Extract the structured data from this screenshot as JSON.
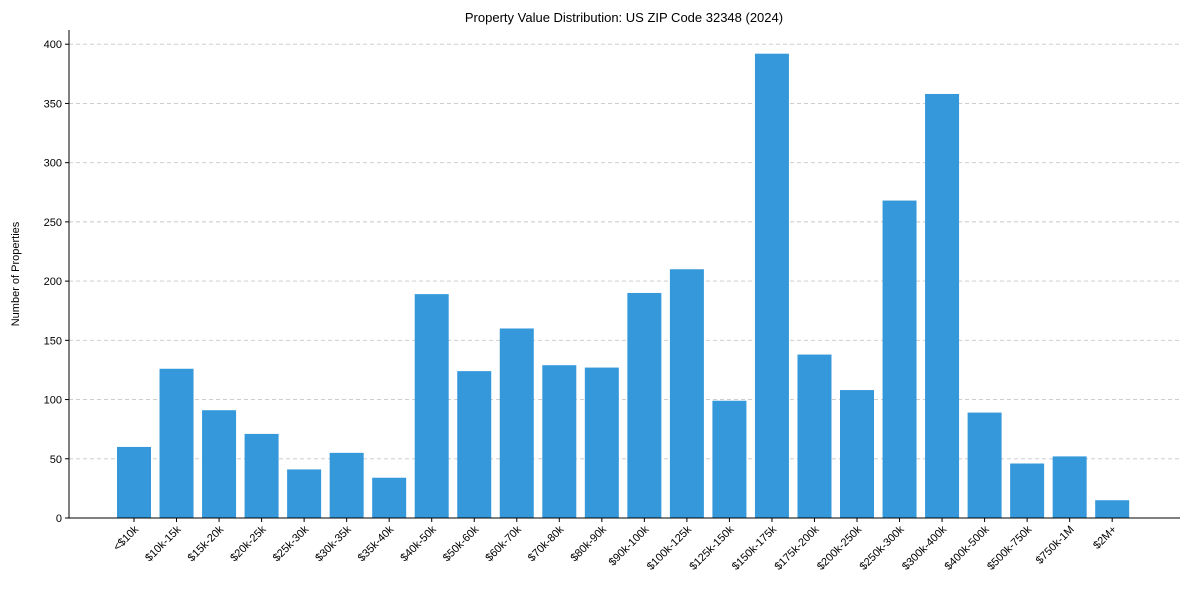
{
  "chart_data": {
    "type": "bar",
    "title": "Property Value Distribution: US ZIP Code 32348 (2024)",
    "xlabel": "",
    "ylabel": "Number of Properties",
    "ylim": [
      0,
      412
    ],
    "yticks": [
      0,
      50,
      100,
      150,
      200,
      250,
      300,
      350,
      400
    ],
    "grid": "y-dashed",
    "bar_color": "#3498db",
    "categories": [
      "<$10k",
      "$10k-15k",
      "$15k-20k",
      "$20k-25k",
      "$25k-30k",
      "$30k-35k",
      "$35k-40k",
      "$40k-50k",
      "$50k-60k",
      "$60k-70k",
      "$70k-80k",
      "$80k-90k",
      "$90k-100k",
      "$100k-125k",
      "$125k-150k",
      "$150k-175k",
      "$175k-200k",
      "$200k-250k",
      "$250k-300k",
      "$300k-400k",
      "$400k-500k",
      "$500k-750k",
      "$750k-1M",
      "$2M+"
    ],
    "values": [
      60,
      126,
      91,
      71,
      41,
      55,
      34,
      189,
      124,
      160,
      129,
      127,
      190,
      210,
      99,
      392,
      138,
      108,
      268,
      358,
      89,
      46,
      52,
      15
    ]
  }
}
